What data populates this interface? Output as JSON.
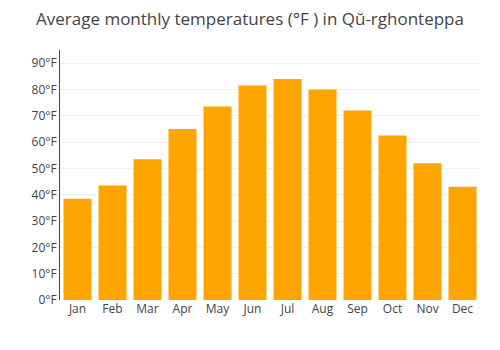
{
  "chart_data": {
    "type": "bar",
    "title": "Average monthly temperatures (°F ) in Qŭ-rghonteppa",
    "categories": [
      "Jan",
      "Feb",
      "Mar",
      "Apr",
      "May",
      "Jun",
      "Jul",
      "Aug",
      "Sep",
      "Oct",
      "Nov",
      "Dec"
    ],
    "values": [
      38.5,
      43.5,
      53.5,
      65.0,
      73.5,
      81.5,
      84.0,
      80.0,
      72.0,
      62.5,
      52.0,
      43.0
    ],
    "color": "#FFA500",
    "ylim": [
      0,
      95
    ],
    "yticks": [
      {
        "value": 0,
        "label": "0°F"
      },
      {
        "value": 10,
        "label": "10°F"
      },
      {
        "value": 20,
        "label": "20°F"
      },
      {
        "value": 30,
        "label": "30°F"
      },
      {
        "value": 40,
        "label": "40°F"
      },
      {
        "value": 50,
        "label": "50°F"
      },
      {
        "value": 60,
        "label": "60°F"
      },
      {
        "value": 70,
        "label": "70°F"
      },
      {
        "value": 80,
        "label": "80°F"
      },
      {
        "value": 90,
        "label": "90°F"
      }
    ],
    "grid": true
  }
}
